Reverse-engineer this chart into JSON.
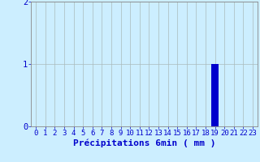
{
  "xlabel": "Précipitations 6min ( mm )",
  "ylim": [
    0,
    2
  ],
  "xlim_min": -0.5,
  "xlim_max": 23.5,
  "yticks": [
    0,
    1,
    2
  ],
  "xticks": [
    0,
    1,
    2,
    3,
    4,
    5,
    6,
    7,
    8,
    9,
    10,
    11,
    12,
    13,
    14,
    15,
    16,
    17,
    18,
    19,
    20,
    21,
    22,
    23
  ],
  "bar_x": 19,
  "bar_height": 1.0,
  "bar_color": "#0000cc",
  "background_color": "#cceeff",
  "grid_color": "#aabbbb",
  "axis_color": "#888888",
  "label_color": "#0000cc",
  "tick_label_color": "#0000cc",
  "bar_width": 0.8,
  "xlabel_fontsize": 8,
  "tick_fontsize": 6.5
}
